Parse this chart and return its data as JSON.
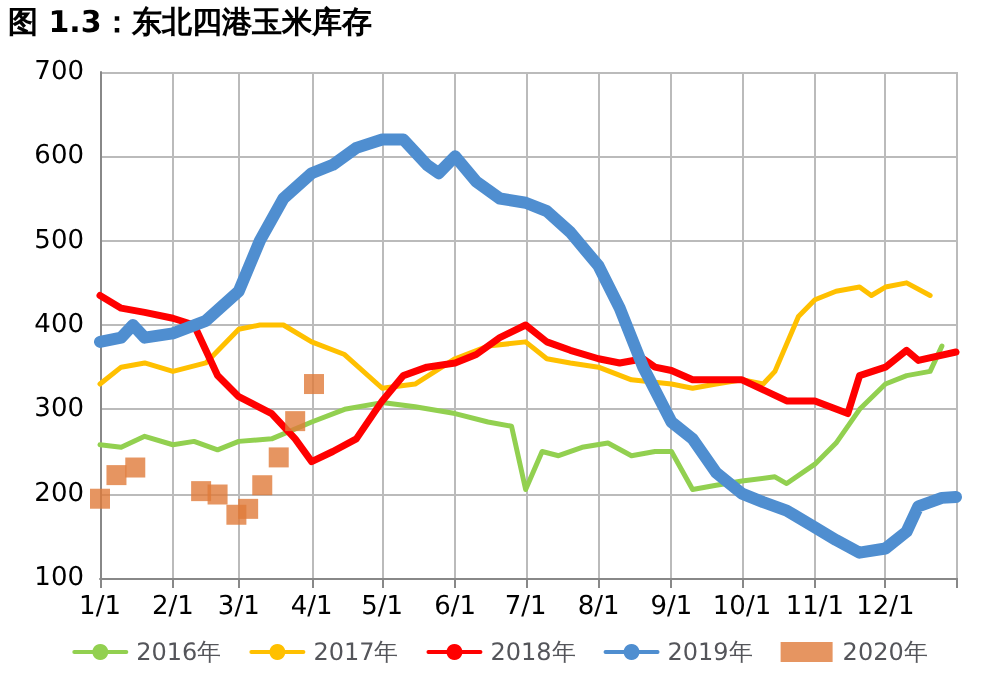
{
  "chart_data": {
    "type": "line",
    "title": "图 1.3：东北四港玉米库存",
    "xlim": [
      "--01-01",
      "--12-31"
    ],
    "xticks": [
      {
        "value": "--01-01",
        "label": "1/1"
      },
      {
        "value": "--02-01",
        "label": "2/1"
      },
      {
        "value": "--03-01",
        "label": "3/1"
      },
      {
        "value": "--04-01",
        "label": "4/1"
      },
      {
        "value": "--05-01",
        "label": "5/1"
      },
      {
        "value": "--06-01",
        "label": "6/1"
      },
      {
        "value": "--07-01",
        "label": "7/1"
      },
      {
        "value": "--08-01",
        "label": "8/1"
      },
      {
        "value": "--09-01",
        "label": "9/1"
      },
      {
        "value": "--10-01",
        "label": "10/1"
      },
      {
        "value": "--11-01",
        "label": "11/1"
      },
      {
        "value": "--12-01",
        "label": "12/1"
      },
      {
        "value": "--12-31",
        "label": null
      }
    ],
    "ylim": [
      100,
      700
    ],
    "yticks": [
      100,
      200,
      300,
      400,
      500,
      600,
      700
    ],
    "grid": true,
    "legend": "bottom",
    "line_style": "solid",
    "series": [
      {
        "name": "2016年",
        "color": "#92d050",
        "x": [
          "--01-01",
          "--01-10",
          "--01-20",
          "--02-01",
          "--02-10",
          "--02-20",
          "--03-01",
          "--03-15",
          "--04-01",
          "--04-15",
          "--05-01",
          "--05-15",
          "--06-01",
          "--06-15",
          "--06-25",
          "--07-01",
          "--07-08",
          "--07-15",
          "--07-25",
          "--08-05",
          "--08-15",
          "--08-25",
          "--09-01",
          "--09-10",
          "--09-20",
          "--10-01",
          "--10-15",
          "--10-20",
          "--11-01",
          "--11-10",
          "--11-20",
          "--12-01",
          "--12-10",
          "--12-20",
          "--12-25"
        ],
        "values": [
          258,
          255,
          268,
          258,
          262,
          252,
          262,
          265,
          285,
          300,
          308,
          303,
          295,
          285,
          280,
          205,
          250,
          245,
          255,
          260,
          245,
          250,
          250,
          205,
          210,
          215,
          220,
          212,
          235,
          260,
          300,
          330,
          340,
          345,
          375
        ]
      },
      {
        "name": "2017年",
        "color": "#ffc000",
        "x": [
          "--01-01",
          "--01-10",
          "--01-20",
          "--02-01",
          "--02-15",
          "--03-01",
          "--03-10",
          "--03-20",
          "--04-01",
          "--04-15",
          "--05-01",
          "--05-15",
          "--06-01",
          "--06-15",
          "--07-01",
          "--07-10",
          "--07-20",
          "--08-01",
          "--08-15",
          "--09-01",
          "--09-10",
          "--09-20",
          "--10-01",
          "--10-10",
          "--10-15",
          "--10-25",
          "--11-01",
          "--11-10",
          "--11-20",
          "--11-25",
          "--12-01",
          "--12-10",
          "--12-20"
        ],
        "values": [
          330,
          350,
          355,
          345,
          355,
          395,
          400,
          400,
          380,
          365,
          325,
          330,
          360,
          375,
          380,
          360,
          355,
          350,
          335,
          330,
          325,
          330,
          335,
          330,
          345,
          410,
          430,
          440,
          445,
          435,
          445,
          450,
          435
        ]
      },
      {
        "name": "2018年",
        "color": "#ff0000",
        "x": [
          "--01-01",
          "--01-10",
          "--01-20",
          "--02-01",
          "--02-10",
          "--02-20",
          "--03-01",
          "--03-15",
          "--03-25",
          "--04-01",
          "--04-10",
          "--04-20",
          "--05-01",
          "--05-10",
          "--05-20",
          "--06-01",
          "--06-10",
          "--06-20",
          "--07-01",
          "--07-10",
          "--07-20",
          "--08-01",
          "--08-10",
          "--08-20",
          "--08-25",
          "--09-01",
          "--09-10",
          "--09-20",
          "--10-01",
          "--10-20",
          "--11-01",
          "--11-15",
          "--11-20",
          "--12-01",
          "--12-10",
          "--12-15",
          "--12-31"
        ],
        "values": [
          435,
          420,
          415,
          408,
          400,
          340,
          315,
          295,
          265,
          238,
          250,
          265,
          310,
          340,
          350,
          355,
          365,
          385,
          400,
          380,
          370,
          360,
          355,
          360,
          350,
          346,
          335,
          335,
          335,
          310,
          310,
          295,
          340,
          350,
          370,
          358,
          368
        ]
      },
      {
        "name": "2019年",
        "color": "#4f8ed0",
        "x": [
          "--01-01",
          "--01-10",
          "--01-15",
          "--01-20",
          "--02-01",
          "--02-15",
          "--03-01",
          "--03-10",
          "--03-20",
          "--04-01",
          "--04-10",
          "--04-20",
          "--05-01",
          "--05-10",
          "--05-20",
          "--05-25",
          "--06-01",
          "--06-10",
          "--06-20",
          "--07-01",
          "--07-10",
          "--07-20",
          "--08-01",
          "--08-10",
          "--08-20",
          "--09-01",
          "--09-10",
          "--09-20",
          "--10-01",
          "--10-10",
          "--10-20",
          "--11-01",
          "--11-10",
          "--11-20",
          "--12-01",
          "--12-10",
          "--12-15",
          "--12-25",
          "--12-31"
        ],
        "values": [
          380,
          385,
          400,
          385,
          390,
          405,
          440,
          500,
          550,
          580,
          590,
          610,
          620,
          620,
          590,
          580,
          600,
          570,
          550,
          545,
          535,
          510,
          470,
          420,
          350,
          285,
          265,
          225,
          200,
          190,
          180,
          160,
          145,
          130,
          135,
          155,
          185,
          195,
          196
        ]
      },
      {
        "name": "2020年",
        "color": "#e07b39",
        "type": "scatter",
        "marker": "square",
        "x": [
          "--01-01",
          "--01-08",
          "--01-16",
          "--02-13",
          "--02-20",
          "--02-28",
          "--03-05",
          "--03-11",
          "--03-18",
          "--03-25",
          "--04-02"
        ],
        "values": [
          194,
          222,
          231,
          203,
          199,
          175,
          182,
          210,
          243,
          286,
          330
        ]
      }
    ]
  }
}
